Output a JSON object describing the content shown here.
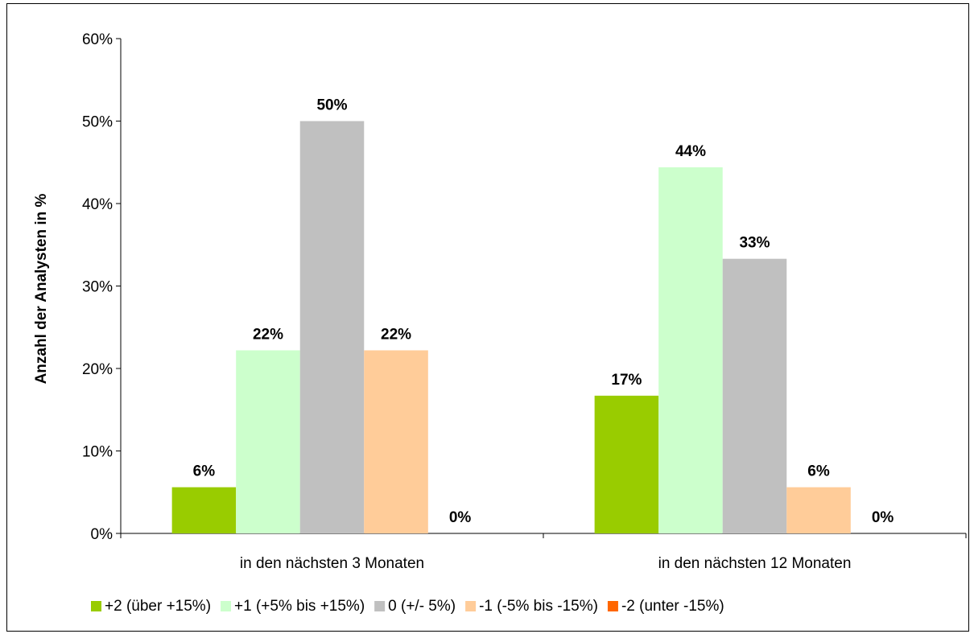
{
  "chart_data": {
    "type": "bar",
    "title": "",
    "xlabel": "",
    "ylabel": "Anzahl der Analysten in %",
    "ylim": [
      0,
      60
    ],
    "yticks": [
      "0%",
      "10%",
      "20%",
      "30%",
      "40%",
      "50%",
      "60%"
    ],
    "grid": false,
    "legend_position": "bottom",
    "categories": [
      "in den nächsten 3 Monaten",
      "in den nächsten 12 Monaten"
    ],
    "series": [
      {
        "name": "+2 (über +15%)",
        "color": "#99cc00",
        "values": [
          5.6,
          16.7
        ],
        "labels": [
          "6%",
          "17%"
        ]
      },
      {
        "name": "+1 (+5% bis +15%)",
        "color": "#ccffcc",
        "values": [
          22.2,
          44.4
        ],
        "labels": [
          "22%",
          "44%"
        ]
      },
      {
        "name": "0 (+/- 5%)",
        "color": "#c0c0c0",
        "values": [
          50.0,
          33.3
        ],
        "labels": [
          "50%",
          "33%"
        ]
      },
      {
        "name": "-1 (-5% bis -15%)",
        "color": "#ffcc99",
        "values": [
          22.2,
          5.6
        ],
        "labels": [
          "22%",
          "6%"
        ]
      },
      {
        "name": "-2 (unter -15%)",
        "color": "#ff6600",
        "values": [
          0,
          0
        ],
        "labels": [
          "0%",
          "0%"
        ]
      }
    ]
  }
}
